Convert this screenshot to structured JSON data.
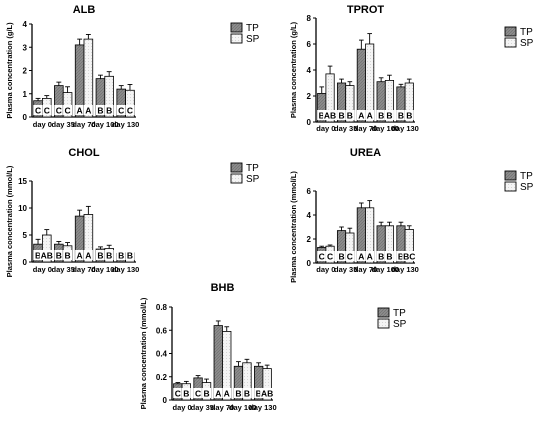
{
  "colors": {
    "tp_fill": "#8c8c8c",
    "sp_fill": "#f4f4f4",
    "stroke": "#000000",
    "background": "#ffffff"
  },
  "legend_labels": [
    "TP",
    "SP"
  ],
  "chart_data": [
    {
      "type": "bar",
      "title": "ALB",
      "ylabel": "Plasma concentration (g/L)",
      "xlabel": "",
      "categories": [
        "day 0",
        "day 35",
        "day 70",
        "day 100",
        "day 130"
      ],
      "ylim": [
        0,
        4
      ],
      "yticks": [
        0,
        1,
        2,
        3,
        4
      ],
      "series": [
        {
          "name": "TP",
          "values": [
            0.7,
            1.35,
            3.1,
            1.65,
            1.2
          ],
          "errors": [
            0.1,
            0.15,
            0.25,
            0.15,
            0.15
          ],
          "letters": [
            "C",
            "C",
            "A",
            "B",
            "C"
          ]
        },
        {
          "name": "SP",
          "values": [
            0.8,
            1.05,
            3.35,
            1.75,
            1.15
          ],
          "errors": [
            0.12,
            0.25,
            0.2,
            0.2,
            0.25
          ],
          "letters": [
            "C",
            "C",
            "A",
            "B",
            "C"
          ]
        }
      ],
      "legend": "right"
    },
    {
      "type": "bar",
      "title": "TPROT",
      "ylabel": "Plasma concentration (g/L)",
      "xlabel": "",
      "categories": [
        "day 0",
        "day 35",
        "day 70",
        "day 100",
        "day 130"
      ],
      "ylim": [
        0,
        8
      ],
      "yticks": [
        0,
        2,
        4,
        6,
        8
      ],
      "series": [
        {
          "name": "TP",
          "values": [
            2.2,
            3.0,
            5.6,
            3.1,
            2.7
          ],
          "errors": [
            0.5,
            0.3,
            0.7,
            0.3,
            0.2
          ],
          "letters": [
            "B",
            "B",
            "A",
            "B",
            "B"
          ]
        },
        {
          "name": "SP",
          "values": [
            3.7,
            2.8,
            6.0,
            3.2,
            3.0
          ],
          "errors": [
            0.6,
            0.3,
            0.8,
            0.4,
            0.3
          ],
          "letters": [
            "AB",
            "B",
            "A",
            "B",
            "B"
          ]
        }
      ],
      "legend": "right"
    },
    {
      "type": "bar",
      "title": "CHOL",
      "ylabel": "Plasma concentration (mmol/L)",
      "xlabel": "",
      "categories": [
        "day 0",
        "day 35",
        "day 70",
        "day 100",
        "day 130"
      ],
      "ylim": [
        0,
        15
      ],
      "yticks": [
        0,
        5,
        10,
        15
      ],
      "series": [
        {
          "name": "TP",
          "values": [
            3.3,
            3.3,
            8.5,
            2.4,
            1.6
          ],
          "errors": [
            0.9,
            0.5,
            1.1,
            0.4,
            0.3
          ],
          "letters": [
            "B",
            "B",
            "A",
            "B",
            "B"
          ]
        },
        {
          "name": "SP",
          "values": [
            5.0,
            3.0,
            8.8,
            2.5,
            1.7
          ],
          "errors": [
            1.0,
            0.6,
            1.5,
            0.6,
            0.3
          ],
          "letters": [
            "AB",
            "B",
            "A",
            "B",
            "B"
          ]
        }
      ],
      "legend": "right"
    },
    {
      "type": "bar",
      "title": "UREA",
      "ylabel": "Plasma concentration (mmol/L)",
      "xlabel": "",
      "categories": [
        "day 0",
        "day 35",
        "day 70",
        "day 100",
        "day 130"
      ],
      "ylim": [
        0,
        6
      ],
      "yticks": [
        0,
        2,
        4,
        6
      ],
      "series": [
        {
          "name": "TP",
          "values": [
            1.3,
            2.7,
            4.6,
            3.1,
            3.1
          ],
          "errors": [
            0.1,
            0.3,
            0.4,
            0.3,
            0.3
          ],
          "letters": [
            "C",
            "B",
            "A",
            "B",
            "B"
          ]
        },
        {
          "name": "SP",
          "values": [
            1.4,
            2.5,
            4.6,
            3.1,
            2.8
          ],
          "errors": [
            0.1,
            0.4,
            0.6,
            0.3,
            0.3
          ],
          "letters": [
            "C",
            "C",
            "A",
            "B",
            "BC"
          ]
        }
      ],
      "legend": "right"
    },
    {
      "type": "bar",
      "title": "BHB",
      "ylabel": "Plasma concentration (mmol/L)",
      "xlabel": "",
      "categories": [
        "day 0",
        "day 35",
        "day 70",
        "day 100",
        "day 130"
      ],
      "ylim": [
        0,
        0.8
      ],
      "yticks": [
        0,
        0.2,
        0.4,
        0.6,
        0.8
      ],
      "series": [
        {
          "name": "TP",
          "values": [
            0.14,
            0.19,
            0.64,
            0.29,
            0.29
          ],
          "errors": [
            0.01,
            0.02,
            0.04,
            0.04,
            0.03
          ],
          "letters": [
            "C",
            "C",
            "A",
            "B",
            "B"
          ]
        },
        {
          "name": "SP",
          "values": [
            0.14,
            0.15,
            0.59,
            0.32,
            0.27
          ],
          "errors": [
            0.02,
            0.03,
            0.04,
            0.03,
            0.03
          ],
          "letters": [
            "B",
            "B",
            "A",
            "B",
            "AB"
          ]
        }
      ],
      "legend": "right"
    }
  ]
}
